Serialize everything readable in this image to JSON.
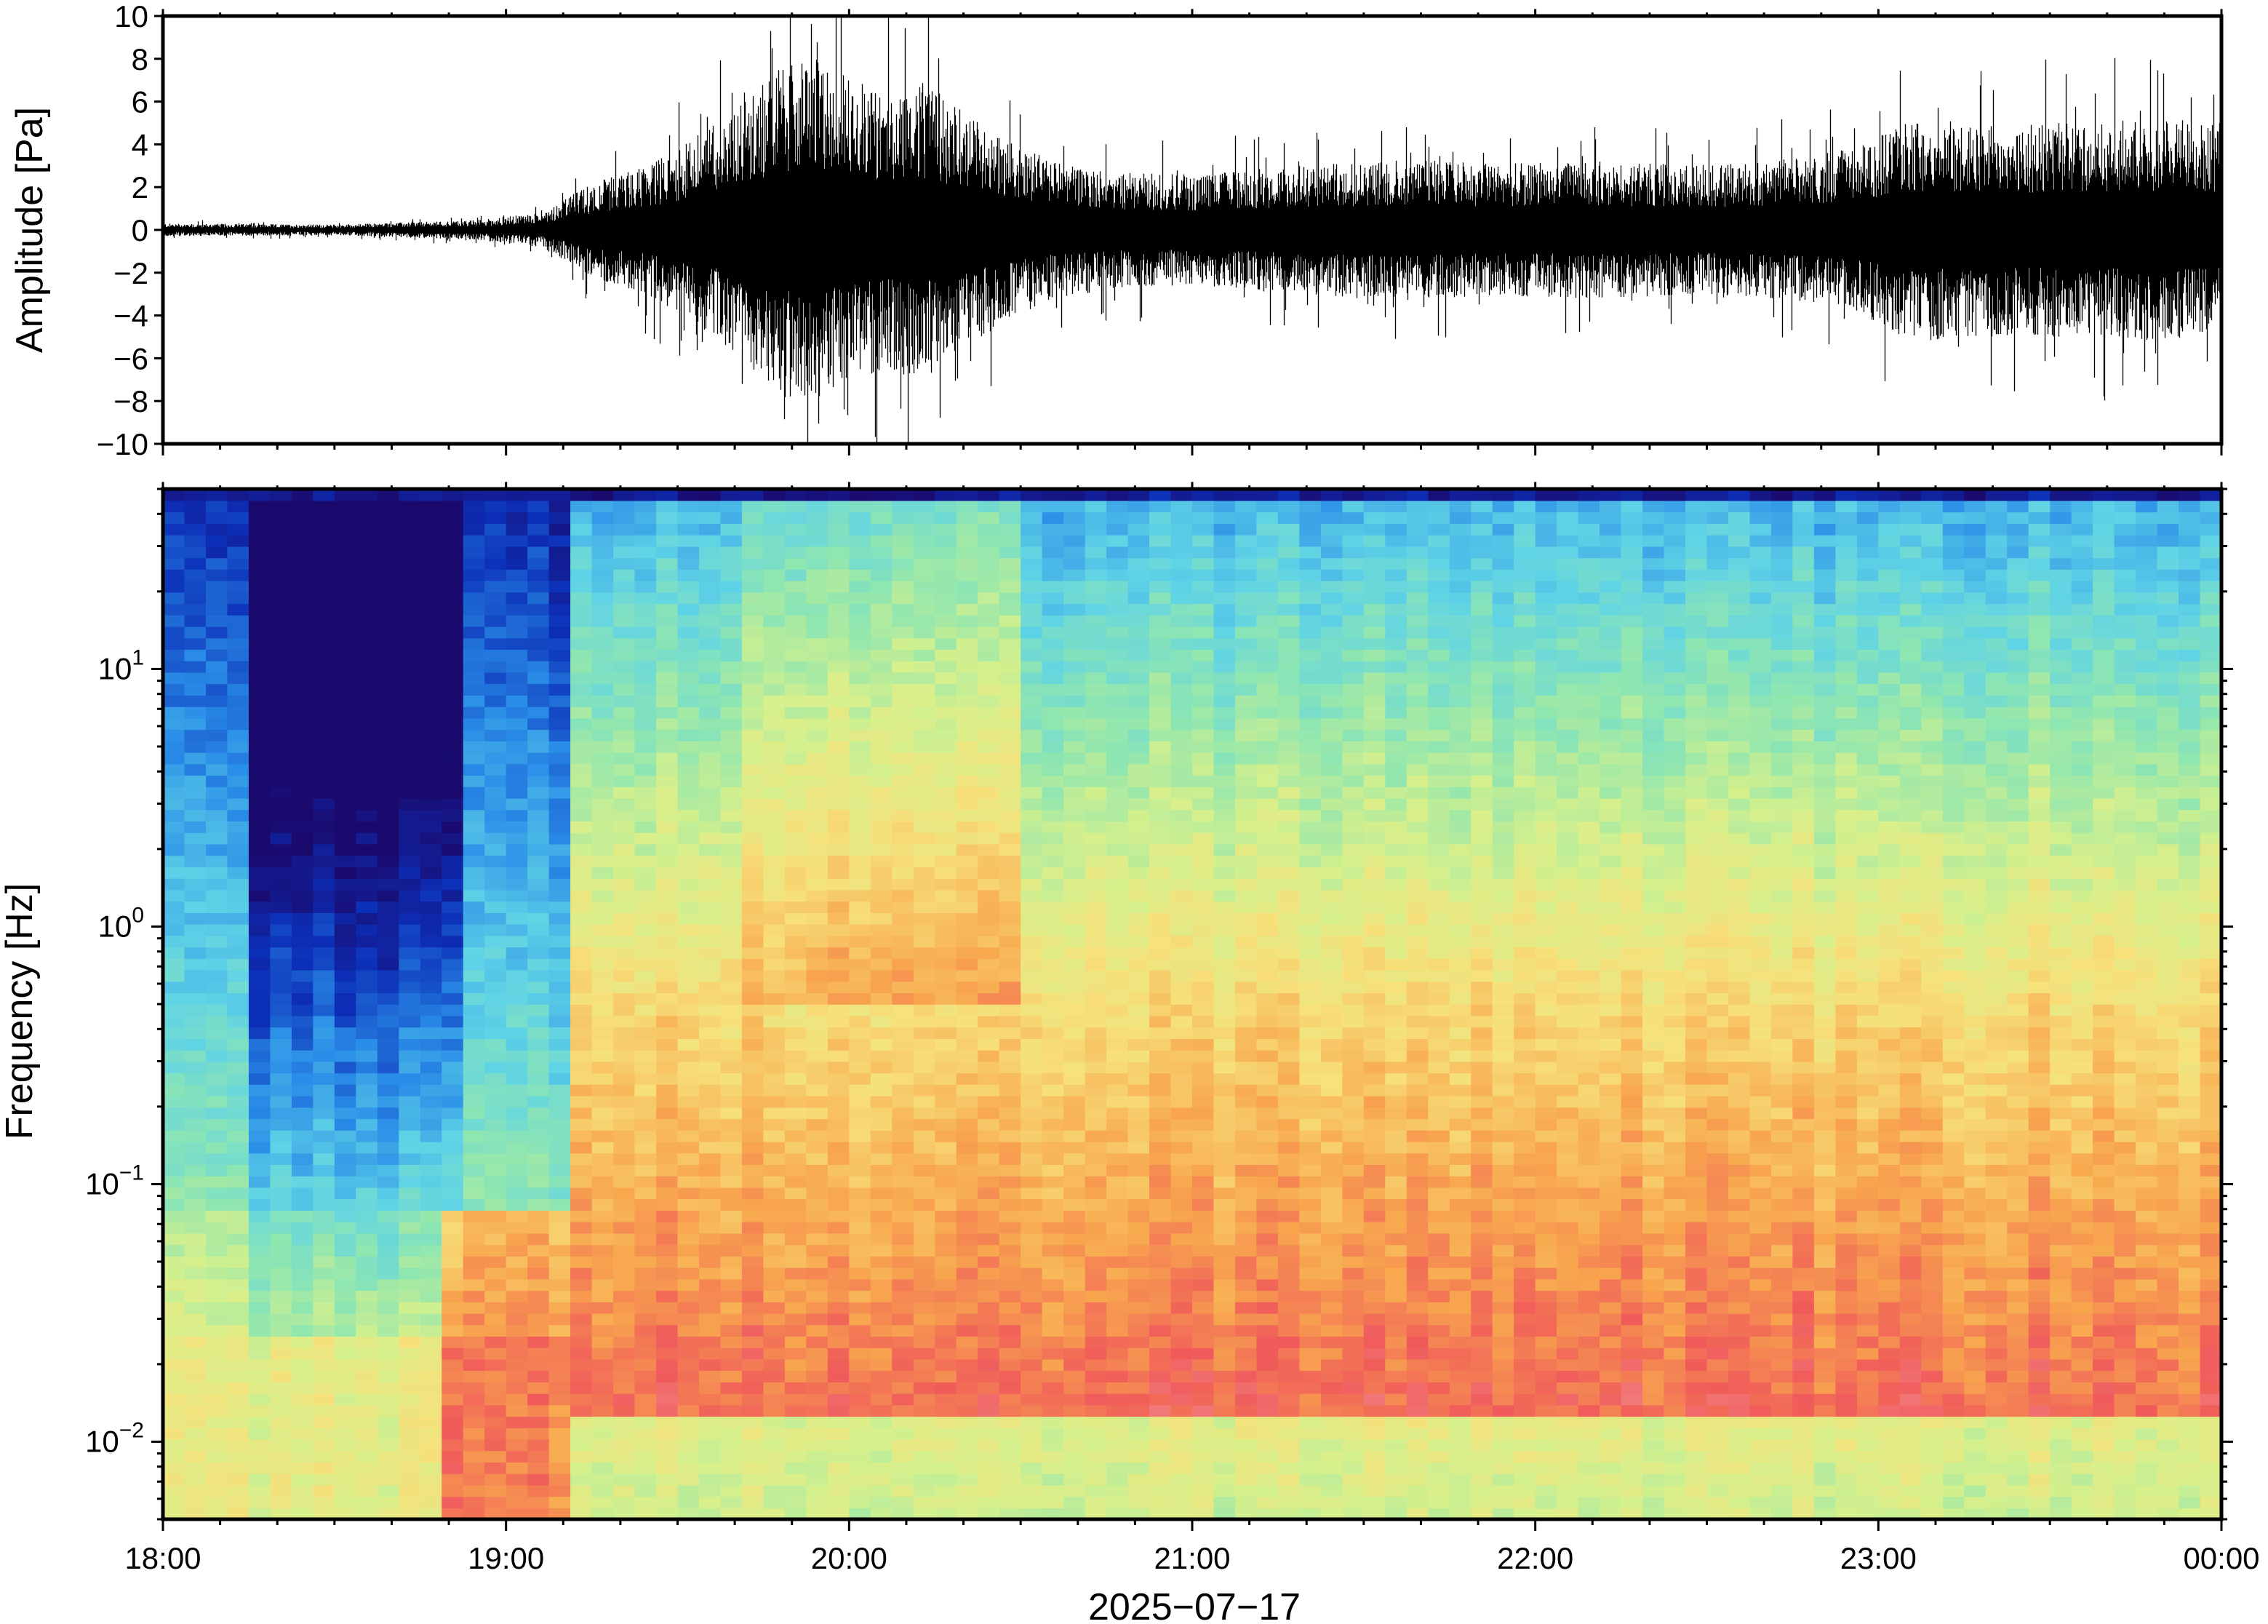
{
  "chart_data": [
    {
      "type": "line",
      "ylabel": "Amplitude [Pa]",
      "ylim": [
        -10,
        10
      ],
      "yticks": [
        -10,
        -8,
        -6,
        -4,
        -2,
        0,
        2,
        4,
        6,
        8,
        10
      ],
      "ytick_labels": [
        "−10",
        "−8",
        "−6",
        "−4",
        "−2",
        "0",
        "2",
        "4",
        "6",
        "8",
        "10"
      ],
      "xlim": [
        "18:00",
        "24:00"
      ],
      "grid": false,
      "series": [
        {
          "color": "#000000",
          "envelope": {
            "x_hours": [
              18.0,
              18.5,
              18.9,
              19.1,
              19.25,
              19.4,
              19.5,
              19.6,
              19.7,
              19.8,
              19.9,
              20.0,
              20.1,
              20.2,
              20.3,
              20.45,
              20.6,
              20.8,
              21.0,
              21.3,
              21.6,
              21.9,
              22.2,
              22.5,
              22.8,
              22.95,
              23.1,
              23.3,
              23.6,
              23.8,
              24.0
            ],
            "amplitude_pa": [
              0.3,
              0.25,
              0.45,
              0.8,
              2.2,
              3.0,
              3.8,
              5.0,
              6.2,
              7.8,
              8.0,
              7.2,
              6.5,
              7.0,
              6.0,
              4.3,
              3.2,
              2.7,
              2.6,
              3.0,
              3.3,
              3.1,
              3.2,
              3.0,
              3.4,
              4.0,
              5.2,
              5.0,
              5.0,
              5.2,
              5.0
            ]
          }
        }
      ]
    },
    {
      "type": "heatmap",
      "xlabel": "2025−07−17",
      "ylabel": "Frequency [Hz]",
      "yscale": "log",
      "ylim": [
        0.005,
        50
      ],
      "yticks": [
        0.01,
        0.1,
        1,
        10
      ],
      "ytick_labels": [
        {
          "base": "10",
          "exp": "−2"
        },
        {
          "base": "10",
          "exp": "−1"
        },
        {
          "base": "10",
          "exp": "0"
        },
        {
          "base": "10",
          "exp": "1"
        }
      ],
      "xticks": [
        "18:00",
        "19:00",
        "20:00",
        "21:00",
        "22:00",
        "23:00",
        "00:00"
      ],
      "colormap": [
        "#1a0a6e",
        "#0c2fb8",
        "#2a8ee8",
        "#5fd3e6",
        "#8fe6b0",
        "#d6f08c",
        "#f7e07a",
        "#f8a84e",
        "#f05a5a",
        "#f7b0b0"
      ],
      "grid": false
    }
  ]
}
